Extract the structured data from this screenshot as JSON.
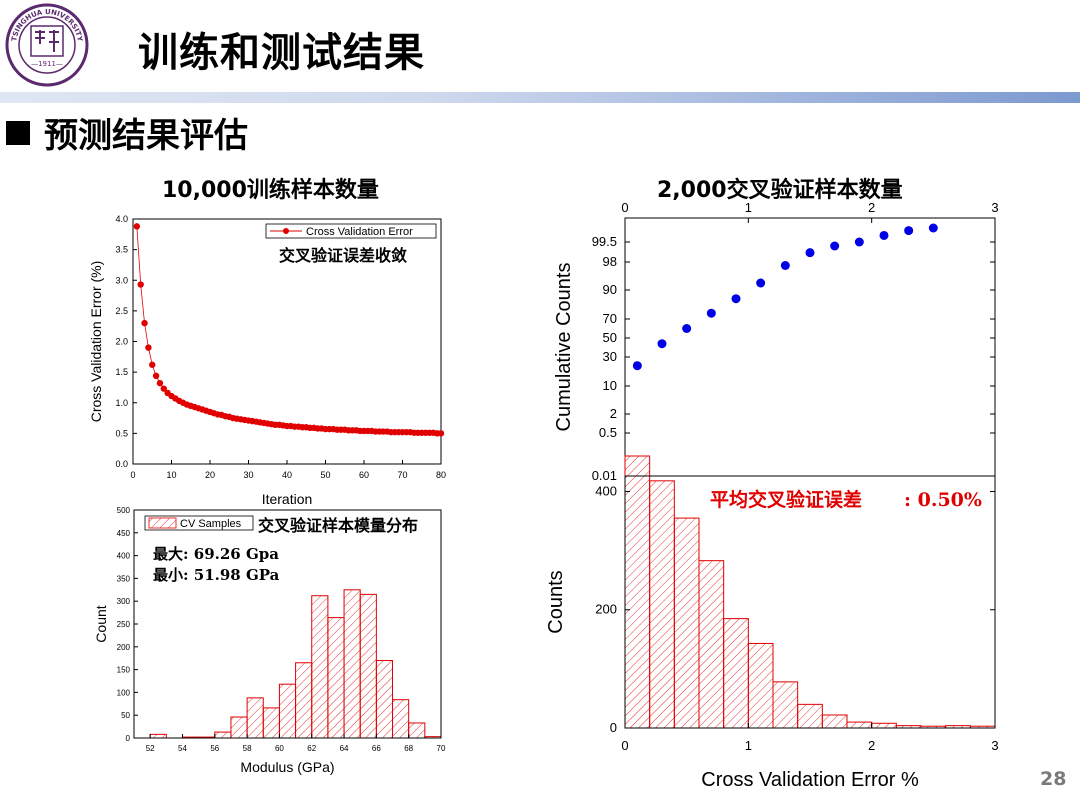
{
  "slide": {
    "title": "训练和测试结果",
    "subtitle": "预测结果评估",
    "left_title": "10,000训练样本数量",
    "right_title": "2,000交叉验证样本数量",
    "page_number": "28",
    "logo": {
      "name": "Tsinghua University seal",
      "year": "1911",
      "text": "TSINGHUA UNIVERSITY"
    }
  },
  "colors": {
    "red": "#e00000",
    "blue": "#0000e6",
    "hist": "#e00000",
    "bar_blue": "#7c99d0"
  },
  "chart_data": [
    {
      "id": "cv_curve",
      "type": "scatter",
      "xlabel": "Iteration",
      "ylabel": "Cross Validation Error (%)",
      "xlim": [
        0,
        80
      ],
      "ylim": [
        0,
        4
      ],
      "xticks": [
        "0",
        "10",
        "20",
        "30",
        "40",
        "50",
        "60",
        "70",
        "80"
      ],
      "yticks": [
        "0.0",
        "0.5",
        "1.0",
        "1.5",
        "2.0",
        "2.5",
        "3.0",
        "3.5",
        "4.0"
      ],
      "legend": "Cross Validation Error",
      "annotation": "交叉验证误差收敛",
      "x": [
        1,
        2,
        3,
        4,
        5,
        6,
        7,
        8,
        9,
        10,
        11,
        12,
        13,
        14,
        15,
        16,
        17,
        18,
        19,
        20,
        21,
        22,
        23,
        24,
        25,
        26,
        27,
        28,
        29,
        30,
        31,
        32,
        33,
        34,
        35,
        36,
        37,
        38,
        39,
        40,
        41,
        42,
        43,
        44,
        45,
        46,
        47,
        48,
        49,
        50,
        51,
        52,
        53,
        54,
        55,
        56,
        57,
        58,
        59,
        60,
        61,
        62,
        63,
        64,
        65,
        66,
        67,
        68,
        69,
        70,
        71,
        72,
        73,
        74,
        75,
        76,
        77,
        78,
        79,
        80
      ],
      "y": [
        3.88,
        2.93,
        2.3,
        1.9,
        1.62,
        1.44,
        1.32,
        1.23,
        1.16,
        1.11,
        1.07,
        1.03,
        1.0,
        0.97,
        0.95,
        0.93,
        0.91,
        0.89,
        0.87,
        0.85,
        0.83,
        0.81,
        0.8,
        0.78,
        0.77,
        0.75,
        0.74,
        0.73,
        0.72,
        0.71,
        0.7,
        0.69,
        0.68,
        0.67,
        0.66,
        0.65,
        0.64,
        0.64,
        0.63,
        0.62,
        0.62,
        0.61,
        0.61,
        0.6,
        0.6,
        0.59,
        0.59,
        0.58,
        0.58,
        0.57,
        0.57,
        0.57,
        0.56,
        0.56,
        0.56,
        0.55,
        0.55,
        0.55,
        0.54,
        0.54,
        0.54,
        0.54,
        0.53,
        0.53,
        0.53,
        0.53,
        0.52,
        0.52,
        0.52,
        0.52,
        0.52,
        0.52,
        0.51,
        0.51,
        0.51,
        0.51,
        0.51,
        0.51,
        0.5,
        0.5
      ]
    },
    {
      "id": "cumulative",
      "type": "scatter",
      "xlabel": "",
      "ylabel": "Cumulative Counts",
      "xlim": [
        0,
        3
      ],
      "xticks": [
        "0",
        "1",
        "2",
        "3"
      ],
      "yticks": [
        "0.01",
        "0.5",
        "2",
        "10",
        "30",
        "50",
        "70",
        "90",
        "98",
        "99.5"
      ],
      "x": [
        0.1,
        0.3,
        0.5,
        0.7,
        0.9,
        1.1,
        1.3,
        1.5,
        1.7,
        1.9,
        2.1,
        2.3,
        2.5
      ],
      "y": [
        24,
        44,
        60,
        74,
        84,
        92,
        97,
        98.7,
        99.2,
        99.5,
        99.7,
        99.85,
        99.93
      ]
    },
    {
      "id": "modulus_hist",
      "type": "bar",
      "xlabel": "Modulus (GPa)",
      "ylabel": "Count",
      "xlim": [
        51,
        70
      ],
      "ylim": [
        0,
        500
      ],
      "xticks": [
        "52",
        "54",
        "56",
        "58",
        "60",
        "62",
        "64",
        "66",
        "68",
        "70"
      ],
      "yticks": [
        "0",
        "50",
        "100",
        "150",
        "200",
        "250",
        "300",
        "350",
        "400",
        "450",
        "500"
      ],
      "legend": "CV Samples",
      "annotation": "交叉验证样本模量分布",
      "stat_max": "最大: 69.26 Gpa",
      "stat_min": "最小: 51.98 GPa",
      "bin_start": 52,
      "bin_width": 1,
      "values": [
        8,
        0,
        2,
        2,
        13,
        46,
        88,
        66,
        118,
        165,
        312,
        264,
        325,
        315,
        170,
        84,
        33,
        3
      ]
    },
    {
      "id": "error_hist",
      "type": "bar",
      "xlabel": "Cross Validation Error %",
      "ylabel": "Counts",
      "xlim": [
        0,
        3
      ],
      "ylim": [
        0,
        460
      ],
      "xticks": [
        "0",
        "1",
        "2",
        "3"
      ],
      "yticks": [
        "0",
        "200",
        "400"
      ],
      "annotation_label": "平均交叉验证误差",
      "annotation_value": ": 0.50%",
      "bin_start": 0,
      "bin_width": 0.2,
      "values": [
        460,
        418,
        355,
        283,
        185,
        143,
        78,
        40,
        22,
        10,
        8,
        4,
        3,
        4,
        3
      ]
    }
  ]
}
